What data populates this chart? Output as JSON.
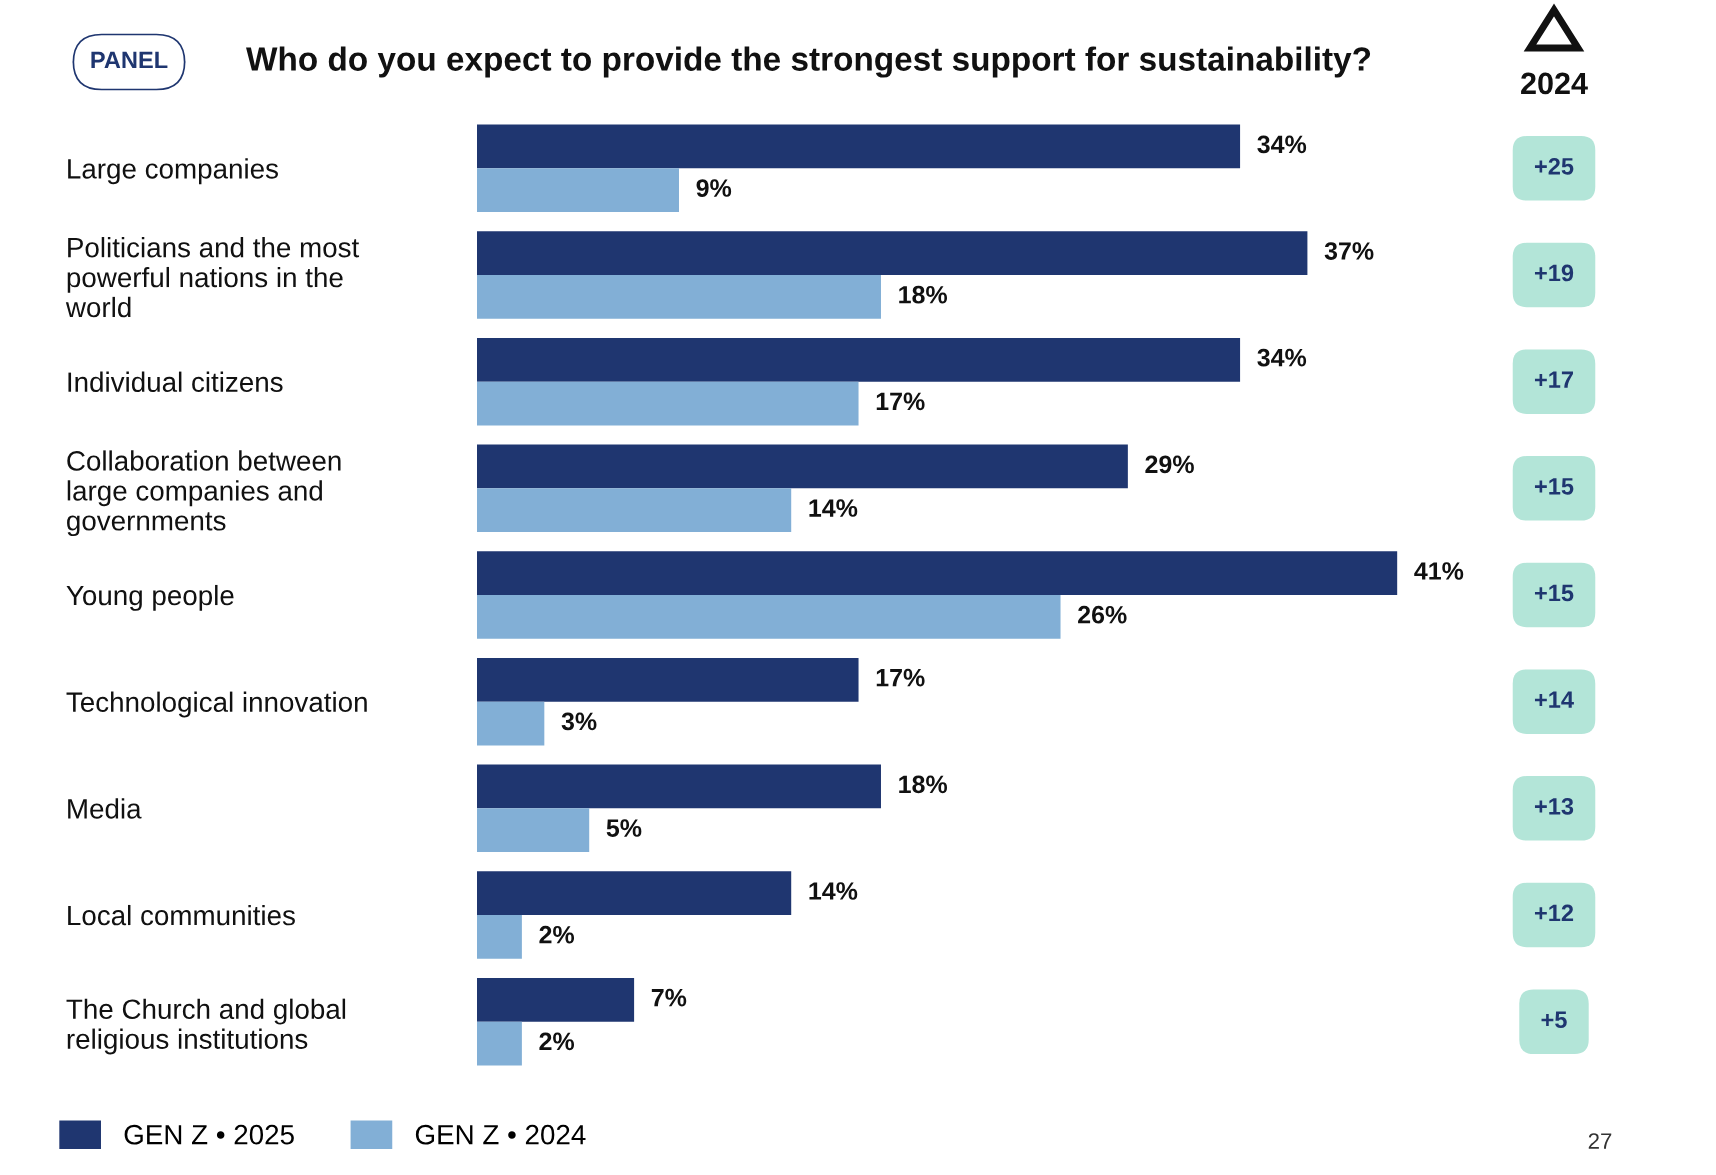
{
  "chart_data": {
    "type": "bar",
    "orientation": "horizontal",
    "title": "Who do you expect to provide the strongest support for sustainability?",
    "categories": [
      "Large companies",
      "Politicians and the most\npowerful nations in the\nworld",
      "Individual citizens",
      "Collaboration between\nlarge companies and\ngovernments",
      "Young people",
      "Technological innovation",
      "Media",
      "Local communities",
      "The Church and global\nreligious institutions"
    ],
    "series": [
      {
        "name": "GEN Z • 2025",
        "color": "#1f3670",
        "values": [
          34,
          37,
          34,
          29,
          41,
          17,
          18,
          14,
          7
        ],
        "value_labels": [
          "34%",
          "37%",
          "34%",
          "29%",
          "41%",
          "17%",
          "18%",
          "14%",
          "7%"
        ]
      },
      {
        "name": "GEN Z • 2024",
        "color": "#82afd6",
        "values": [
          9,
          18,
          17,
          14,
          26,
          3,
          5,
          2,
          2
        ],
        "value_labels": [
          "9%",
          "18%",
          "17%",
          "14%",
          "26%",
          "3%",
          "5%",
          "2%",
          "2%"
        ]
      }
    ],
    "annotations": [
      "PANEL",
      "2024",
      "27",
      "+25",
      "+19",
      "+17",
      "+15",
      "+15",
      "+14",
      "+13",
      "+12",
      "+5"
    ],
    "legend": "bottom left",
    "tick_labels": "y",
    "grid": false
  }
}
